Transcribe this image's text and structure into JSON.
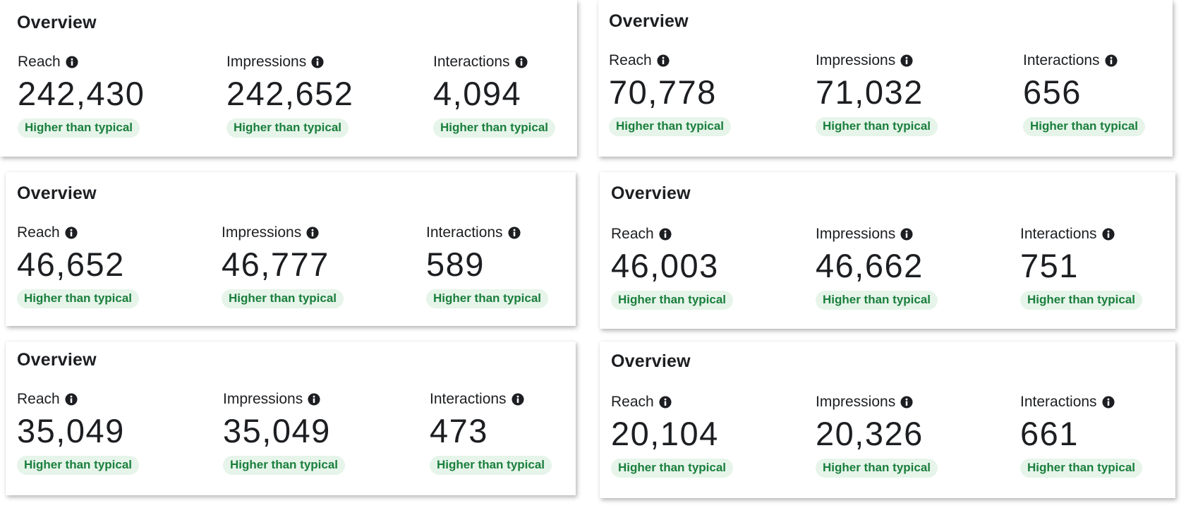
{
  "colors": {
    "badge_bg": "#e6f4ea",
    "badge_text": "#1a7f3c",
    "text": "#1c1e21",
    "icon": "#1c1e21"
  },
  "cards": [
    {
      "title": "Overview",
      "metrics": [
        {
          "label": "Reach",
          "icon": "info-icon",
          "value": "242,430",
          "badge": "Higher than typical"
        },
        {
          "label": "Impressions",
          "icon": "info-icon",
          "value": "242,652",
          "badge": "Higher than typical"
        },
        {
          "label": "Interactions",
          "icon": "info-icon",
          "value": "4,094",
          "badge": "Higher than typical"
        }
      ]
    },
    {
      "title": "Overview",
      "metrics": [
        {
          "label": "Reach",
          "icon": "info-icon",
          "value": "70,778",
          "badge": "Higher than typical"
        },
        {
          "label": "Impressions",
          "icon": "info-icon",
          "value": "71,032",
          "badge": "Higher than typical"
        },
        {
          "label": "Interactions",
          "icon": "info-icon",
          "value": "656",
          "badge": "Higher than typical"
        }
      ]
    },
    {
      "title": "Overview",
      "metrics": [
        {
          "label": "Reach",
          "icon": "info-icon",
          "value": "46,652",
          "badge": "Higher than typical"
        },
        {
          "label": "Impressions",
          "icon": "info-icon",
          "value": "46,777",
          "badge": "Higher than typical"
        },
        {
          "label": "Interactions",
          "icon": "info-icon",
          "value": "589",
          "badge": "Higher than typical"
        }
      ]
    },
    {
      "title": "Overview",
      "metrics": [
        {
          "label": "Reach",
          "icon": "info-icon",
          "value": "46,003",
          "badge": "Higher than typical"
        },
        {
          "label": "Impressions",
          "icon": "info-icon",
          "value": "46,662",
          "badge": "Higher than typical"
        },
        {
          "label": "Interactions",
          "icon": "info-icon",
          "value": "751",
          "badge": "Higher than typical"
        }
      ]
    },
    {
      "title": "Overview",
      "metrics": [
        {
          "label": "Reach",
          "icon": "info-icon",
          "value": "35,049",
          "badge": "Higher than typical"
        },
        {
          "label": "Impressions",
          "icon": "info-icon",
          "value": "35,049",
          "badge": "Higher than typical"
        },
        {
          "label": "Interactions",
          "icon": "info-icon",
          "value": "473",
          "badge": "Higher than typical"
        }
      ]
    },
    {
      "title": "Overview",
      "metrics": [
        {
          "label": "Reach",
          "icon": "info-icon",
          "value": "20,104",
          "badge": "Higher than typical"
        },
        {
          "label": "Impressions",
          "icon": "info-icon",
          "value": "20,326",
          "badge": "Higher than typical"
        },
        {
          "label": "Interactions",
          "icon": "info-icon",
          "value": "661",
          "badge": "Higher than typical"
        }
      ]
    }
  ]
}
